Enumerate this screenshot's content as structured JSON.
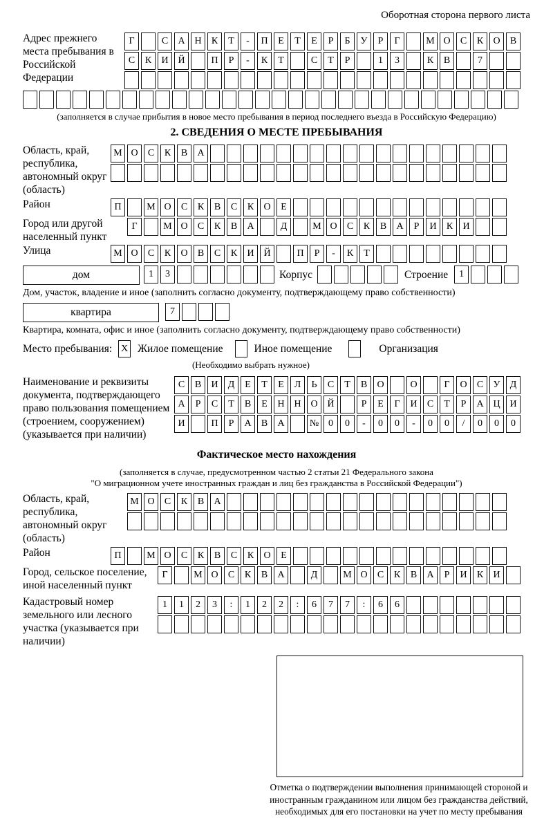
{
  "colors": {
    "ink": "#000000",
    "paper": "#ffffff"
  },
  "page": {
    "header_note": "Оборотная сторона первого листа"
  },
  "prev_address": {
    "label": "Адрес прежнего места пребывания в Российской Федерации",
    "row1": {
      "text": "Г САНКТ-ПЕТЕРБУРГ МОСКОВ",
      "cells": 24
    },
    "row2": {
      "text": "СКИЙ ПР-КТ СТР 13 КВ 7",
      "cells": 24
    },
    "row3": {
      "text": "",
      "cells": 24
    },
    "row4": {
      "text": "",
      "cells": 30
    },
    "note": "(заполняется в случае прибытия в новое место пребывания в период последнего въезда в Российскую Федерацию)"
  },
  "section2": {
    "title": "2. СВЕДЕНИЯ О МЕСТЕ ПРЕБЫВАНИЯ",
    "region": {
      "label": "Область, край, республика, автономный округ (область)",
      "row1": {
        "text": "МОСКВА",
        "cells": 24
      },
      "row2": {
        "text": "",
        "cells": 24
      }
    },
    "district": {
      "label": "Район",
      "row": {
        "text": "П МОСКВСКОЕ",
        "cells": 24
      }
    },
    "city": {
      "label": "Город или другой населенный пункт",
      "row": {
        "text": "Г МОСКВА Д МОСКВАРИКИ",
        "cells": 23
      }
    },
    "street": {
      "label": "Улица",
      "row": {
        "text": "МОСКОВСКИЙ ПР-КТ",
        "cells": 24
      }
    },
    "house": {
      "box_label": "дом",
      "house_cells": {
        "text": "13",
        "cells": 8
      },
      "korpus_label": "Корпус",
      "korpus_cells": {
        "text": "",
        "cells": 5
      },
      "stroenie_label": "Строение",
      "stroenie_cells": {
        "text": "1",
        "cells": 4
      },
      "note": "Дом, участок, владение и иное (заполнить согласно документу, подтверждающему право собственности)"
    },
    "apartment": {
      "box_label": "квартира",
      "cells": {
        "text": "7",
        "cells": 4
      },
      "note": "Квартира, комната, офис и иное (заполнить согласно документу, подтверждающему право собственности)"
    },
    "stay_type": {
      "label": "Место пребывания:",
      "options": [
        {
          "label": "Жилое помещение",
          "mark": "X"
        },
        {
          "label": "Иное помещение",
          "mark": ""
        },
        {
          "label": "Организация",
          "mark": ""
        }
      ],
      "note": "(Необходимо выбрать нужное)"
    },
    "document": {
      "label": "Наименование и реквизиты документа, подтверждающего право пользования помещением (строением, сооружением) (указывается при наличии)",
      "row1": {
        "text": "СВИДЕТЕЛЬСТВО О ГОСУД",
        "cells": 21
      },
      "row2": {
        "text": "АРСТВЕННОЙ РЕГИСТРАЦИ",
        "cells": 21
      },
      "row3": {
        "text": "И ПРАВА №00-00-00/000",
        "cells": 21
      }
    }
  },
  "section3": {
    "title": "Фактическое место нахождения",
    "note_line1": "(заполняется в случае, предусмотренном частью 2 статьи 21 Федерального закона",
    "note_line2": "\"О миграционном учете иностранных граждан и лиц без гражданства в Российской Федерации\")",
    "region": {
      "label": "Область, край, республика, автономный округ (область)",
      "row1": {
        "text": "МОСКВА",
        "cells": 23
      },
      "row2": {
        "text": "",
        "cells": 23
      }
    },
    "district": {
      "label": "Район",
      "row": {
        "text": "П МОСКВСКОЕ",
        "cells": 24
      }
    },
    "city": {
      "label": "Город, сельское поселение, иной населенный пункт",
      "row": {
        "text": "Г МОСКВА Д МОСКВАРИКИ",
        "cells": 22
      }
    },
    "cadastre": {
      "label": "Кадастровый номер земельного или лесного участка (указывается при наличии)",
      "row1": {
        "text": "1123:122:677:66",
        "cells": 22
      },
      "row2": {
        "text": "",
        "cells": 22
      }
    },
    "stamp_caption": "Отметка о подтверждении выполнения принимающей стороной и иностранным гражданином или лицом без гражданства действий, необходимых для его постановки на учет по месту пребывания"
  }
}
